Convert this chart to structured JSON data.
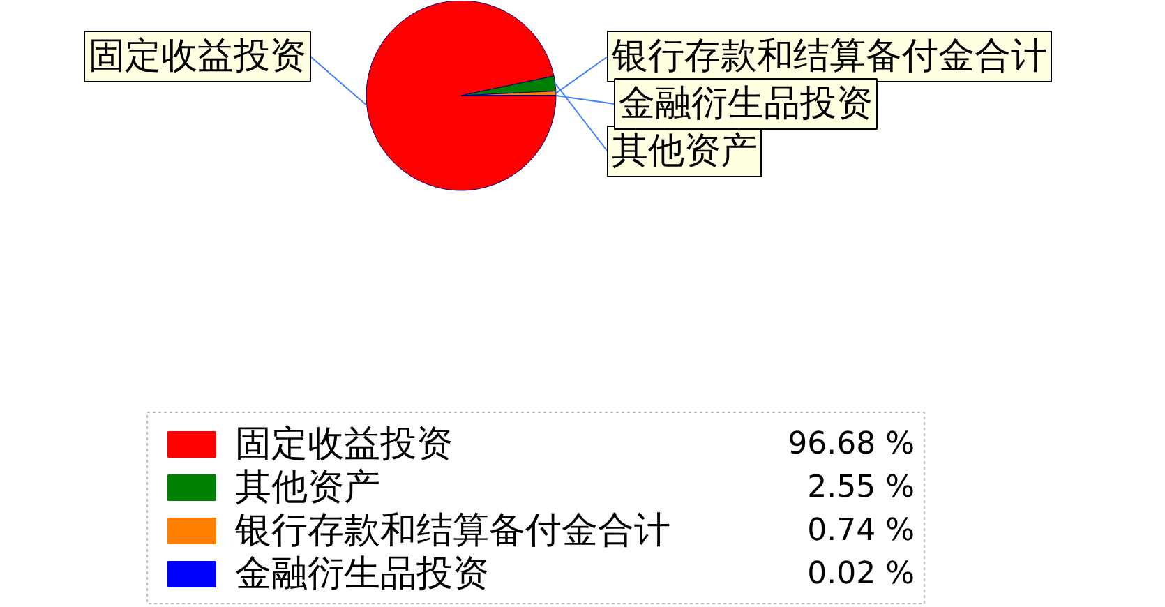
{
  "chart_data": {
    "type": "pie",
    "categories": [
      "固定收益投资",
      "其他资产",
      "银行存款和结算备付金合计",
      "金融衍生品投资"
    ],
    "values": [
      96.68,
      2.55,
      0.74,
      0.02
    ],
    "colors": [
      "#ff0000",
      "#008000",
      "#ff8000",
      "#0000ff"
    ],
    "value_labels": [
      "96.68 %",
      "2.55 %",
      "0.74 %",
      "0.02 %"
    ],
    "legend": "bottom"
  }
}
